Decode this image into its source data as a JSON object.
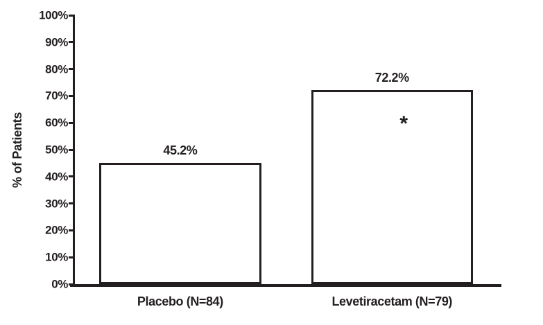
{
  "chart_data": {
    "type": "bar",
    "title": "",
    "xlabel": "",
    "ylabel": "% of Patients",
    "ylim": [
      0,
      100
    ],
    "grid": false,
    "legend": false,
    "ytick_values": [
      0,
      10,
      20,
      30,
      40,
      50,
      60,
      70,
      80,
      90,
      100
    ],
    "ytick_labels": [
      "0%",
      "10%",
      "20%",
      "30%",
      "40%",
      "50%",
      "60%",
      "70%",
      "80%",
      "90%",
      "100%"
    ],
    "categories": [
      "Placebo (N=84)",
      "Levetiracetam (N=79)"
    ],
    "values": [
      45.2,
      72.2
    ],
    "value_labels": [
      "45.2%",
      "72.2%"
    ],
    "annotations": [
      "",
      "*"
    ],
    "bar_fill_color": "#ffffff",
    "bar_border_color": "#231f20",
    "axis_color": "#231f20",
    "text_color": "#231f20",
    "background_color": "#ffffff"
  }
}
